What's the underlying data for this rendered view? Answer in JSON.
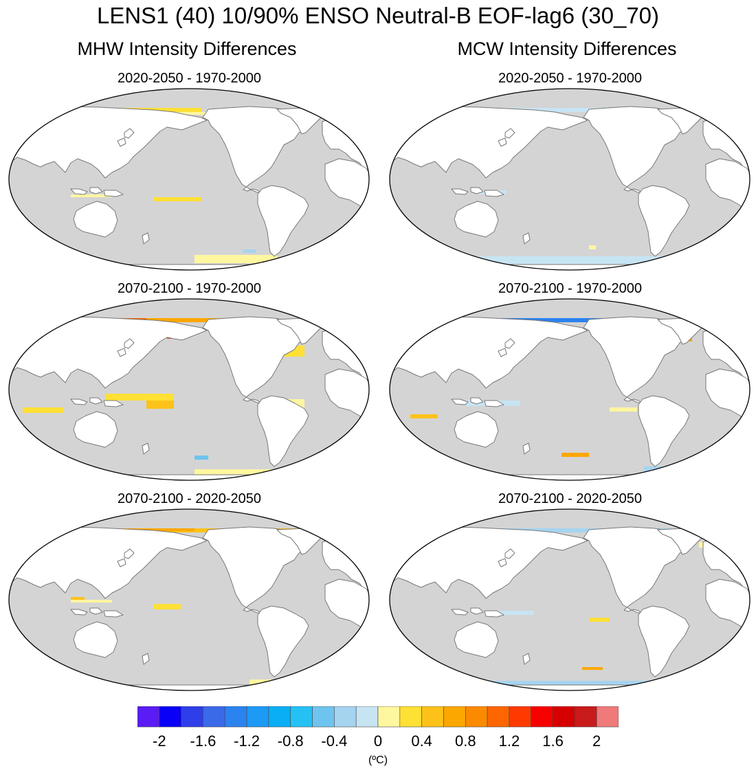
{
  "figure": {
    "title": "LENS1 (40) 10/90% ENSO Neutral-B EOF-lag6 (30_70)",
    "columns": [
      "MHW Intensity Differences",
      "MCW Intensity Differences"
    ]
  },
  "panels": [
    {
      "id": "mhw-1",
      "column": "MHW",
      "subtitle": "2020-2050 - 1970-2000",
      "dominant_sign": "warm",
      "strength": 1
    },
    {
      "id": "mcw-1",
      "column": "MCW",
      "subtitle": "2020-2050 - 1970-2000",
      "dominant_sign": "cool",
      "strength": 1
    },
    {
      "id": "mhw-2",
      "column": "MHW",
      "subtitle": "2070-2100 - 1970-2000",
      "dominant_sign": "warm",
      "strength": 3
    },
    {
      "id": "mcw-2",
      "column": "MCW",
      "subtitle": "2070-2100 - 1970-2000",
      "dominant_sign": "cool",
      "strength": 3
    },
    {
      "id": "mhw-3",
      "column": "MHW",
      "subtitle": "2070-2100 - 2020-2050",
      "dominant_sign": "warm",
      "strength": 2
    },
    {
      "id": "mcw-3",
      "column": "MCW",
      "subtitle": "2070-2100 - 2020-2050",
      "dominant_sign": "cool",
      "strength": 2
    }
  ],
  "colorbar": {
    "colors": [
      "#5a1cf4",
      "#0a00f6",
      "#2e3fe9",
      "#3b6ae8",
      "#2b83ef",
      "#1d99f6",
      "#0aaef4",
      "#25c1f5",
      "#6ec4ee",
      "#a5d4f0",
      "#c7e4f3",
      "#fff6a0",
      "#ffe035",
      "#fdc21a",
      "#fca700",
      "#fb8a00",
      "#fd6600",
      "#ff3a00",
      "#f70000",
      "#d60000",
      "#c91b1b",
      "#ee7a7a"
    ],
    "tick_labels": [
      "-2",
      "-1.6",
      "-1.2",
      "-0.8",
      "-0.4",
      "0",
      "0.4",
      "0.8",
      "1.2",
      "1.6",
      "2"
    ],
    "units": "(ºC)"
  },
  "colors": {
    "ocean": "#d4d4d4",
    "land": "#ffffff",
    "coast": "#777777"
  }
}
